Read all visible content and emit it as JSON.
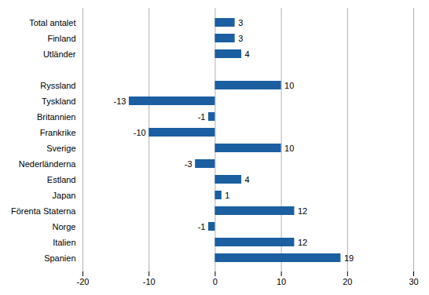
{
  "chart_data": {
    "type": "bar",
    "orientation": "horizontal",
    "categories": [
      "Spanien",
      "Italien",
      "Norge",
      "Förenta Staterna",
      "Japan",
      "Estland",
      "Nederländerna",
      "Sverige",
      "Frankrike",
      "Britannien",
      "Tyskland",
      "Ryssland",
      null,
      "Utländer",
      "Finland",
      "Total antalet"
    ],
    "values": [
      19,
      12,
      -1,
      12,
      1,
      4,
      -3,
      10,
      -10,
      -1,
      -13,
      10,
      null,
      4,
      3,
      3
    ],
    "color": "#1b5fa0",
    "xlim": [
      -20,
      30
    ],
    "xticks": [
      -20,
      -10,
      0,
      10,
      20,
      30
    ],
    "grid": true,
    "data_labels": true
  }
}
